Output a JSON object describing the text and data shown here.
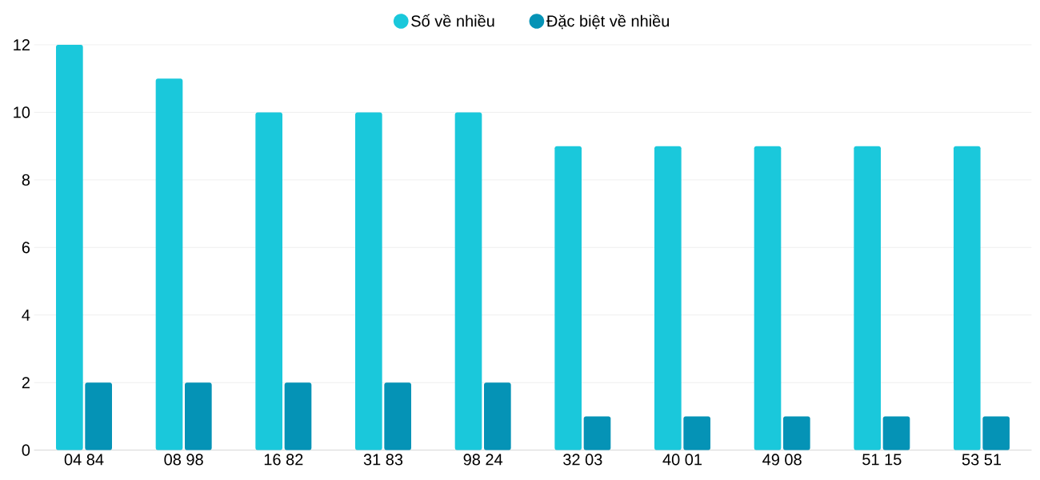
{
  "chart_data": {
    "type": "bar",
    "categories": [
      "04 84",
      "08 98",
      "16 82",
      "31 83",
      "98 24",
      "32 03",
      "40 01",
      "49 08",
      "51 15",
      "53 51"
    ],
    "series": [
      {
        "name": "Số về nhiều",
        "color": "#1ac8db",
        "values": [
          12,
          11,
          10,
          10,
          10,
          9,
          9,
          9,
          9,
          9
        ]
      },
      {
        "name": "Đặc biệt về nhiều",
        "color": "#0593b6",
        "values": [
          2,
          2,
          2,
          2,
          2,
          1,
          1,
          1,
          1,
          1
        ]
      }
    ],
    "ylim": [
      0,
      12
    ],
    "yticks": [
      0,
      2,
      4,
      6,
      8,
      10,
      12
    ],
    "grid": "y",
    "legend": "top"
  }
}
